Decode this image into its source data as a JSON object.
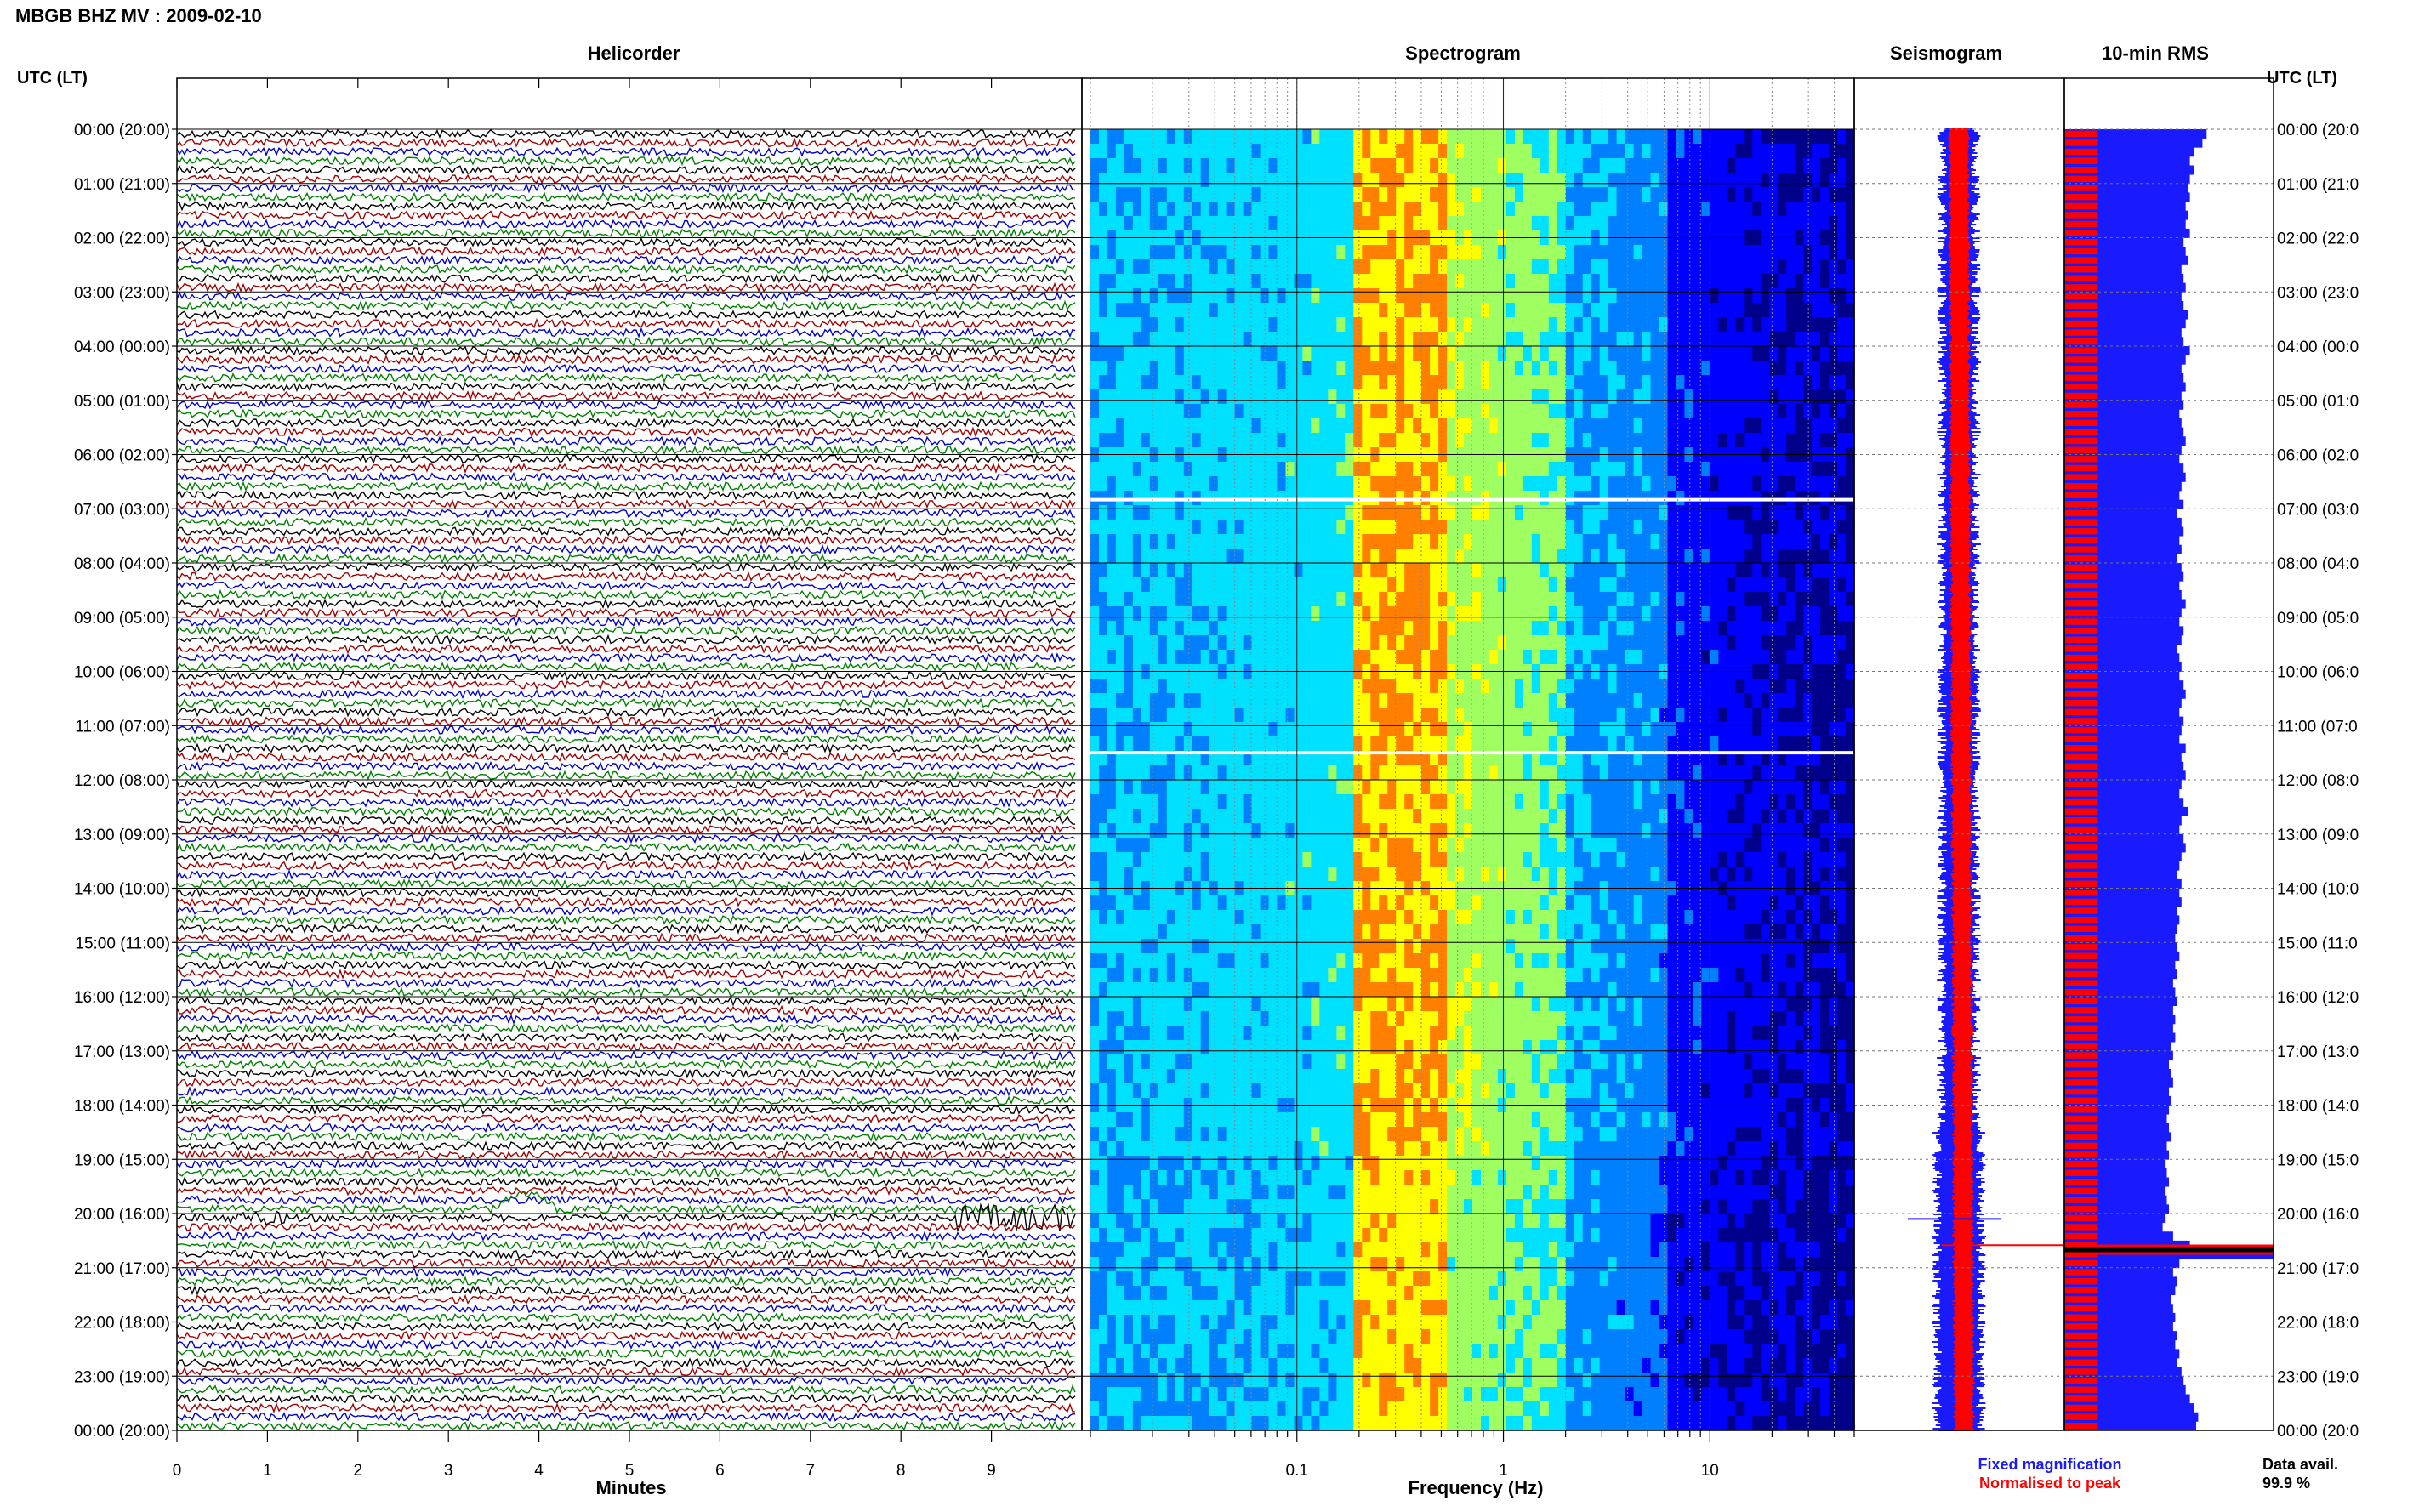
{
  "title": "MBGB BHZ MV : 2009-02-10",
  "time_axis_label": "UTC (LT)",
  "panels": {
    "helicorder": "Helicorder",
    "spectrogram": "Spectrogram",
    "seismogram": "Seismogram",
    "rms": "10-min RMS"
  },
  "time_labels": [
    "00:00 (20:00)",
    "01:00 (21:00)",
    "02:00 (22:00)",
    "03:00 (23:00)",
    "04:00 (00:00)",
    "05:00 (01:00)",
    "06:00 (02:00)",
    "07:00 (03:00)",
    "08:00 (04:00)",
    "09:00 (05:00)",
    "10:00 (06:00)",
    "11:00 (07:00)",
    "12:00 (08:00)",
    "13:00 (09:00)",
    "14:00 (10:00)",
    "15:00 (11:00)",
    "16:00 (12:00)",
    "17:00 (13:00)",
    "18:00 (14:00)",
    "19:00 (15:00)",
    "20:00 (16:00)",
    "21:00 (17:00)",
    "22:00 (18:00)",
    "23:00 (19:00)",
    "00:00 (20:00)"
  ],
  "right_time_labels": [
    "00:00 (20:0",
    "01:00 (21:0",
    "02:00 (22:0",
    "03:00 (23:0",
    "04:00 (00:0",
    "05:00 (01:0",
    "06:00 (02:0",
    "07:00 (03:0",
    "08:00 (04:0",
    "09:00 (05:0",
    "10:00 (06:0",
    "11:00 (07:0",
    "12:00 (08:0",
    "13:00 (09:0",
    "14:00 (10:0",
    "15:00 (11:0",
    "16:00 (12:0",
    "17:00 (13:0",
    "18:00 (14:0",
    "19:00 (15:0",
    "20:00 (16:0",
    "21:00 (17:0",
    "22:00 (18:0",
    "23:00 (19:0",
    "00:00 (20:0"
  ],
  "legend": {
    "fixed": "Fixed magnification",
    "normalised": "Normalised to peak",
    "fixed_color": "#1a1aff",
    "normalised_color": "#ff0000"
  },
  "data_avail_label": "Data avail.",
  "data_avail_value": "99.9 %",
  "chart_data": [
    {
      "type": "line",
      "panel": "Helicorder",
      "xlabel": "Minutes",
      "x_ticks": [
        "0",
        "1",
        "2",
        "3",
        "4",
        "5",
        "6",
        "7",
        "8",
        "9"
      ],
      "xlim": [
        0,
        10
      ],
      "trace_colors": [
        "#000000",
        "#a00000",
        "#0000c8",
        "#008000"
      ],
      "rows": 144,
      "events": [
        {
          "time": "20:00",
          "minute_start": 8.6,
          "minute_end": 10,
          "description": "large amplitude"
        },
        {
          "time": "20:00",
          "minute_start": 0.5,
          "minute_end": 1.3,
          "description": "moderate amplitude"
        },
        {
          "time": "19:50",
          "minute_start": 3.5,
          "minute_end": 4.2,
          "description": "long-period excursion"
        }
      ]
    },
    {
      "type": "heatmap",
      "panel": "Spectrogram",
      "xlabel": "Frequency (Hz)",
      "x_scale": "log",
      "xlim": [
        0.01,
        50
      ],
      "x_ticks": [
        "0.1",
        "1",
        "10"
      ],
      "colormap": [
        "#00008a",
        "#0000ff",
        "#0080ff",
        "#00e0ff",
        "#a0ff60",
        "#ffff00",
        "#ff8000"
      ],
      "peak_band_hz": [
        0.2,
        0.5
      ],
      "gaps_utc": [
        "06:50",
        "11:30"
      ]
    },
    {
      "type": "line",
      "panel": "Seismogram",
      "series": [
        {
          "name": "Fixed magnification",
          "color": "#1a1aff"
        },
        {
          "name": "Normalised to peak",
          "color": "#ff0000"
        }
      ],
      "peak_time_utc": "20:35"
    },
    {
      "type": "bar",
      "panel": "10-min RMS",
      "orientation": "horizontal",
      "series": [
        {
          "name": "Fixed magnification",
          "color": "#1a1aff"
        },
        {
          "name": "Normalised to peak",
          "color": "#ff0000"
        }
      ],
      "fixed_relative": [
        0.68,
        0.66,
        0.62,
        0.6,
        0.62,
        0.6,
        0.59,
        0.6,
        0.58,
        0.59,
        0.58,
        0.6,
        0.57,
        0.58,
        0.59,
        0.56,
        0.57,
        0.58,
        0.56,
        0.57,
        0.59,
        0.58,
        0.56,
        0.57,
        0.6,
        0.58,
        0.56,
        0.57,
        0.58,
        0.56,
        0.57,
        0.55,
        0.56,
        0.57,
        0.58,
        0.56,
        0.55,
        0.57,
        0.58,
        0.56,
        0.55,
        0.57,
        0.54,
        0.56,
        0.57,
        0.55,
        0.56,
        0.54,
        0.56,
        0.57,
        0.55,
        0.56,
        0.58,
        0.56,
        0.55,
        0.57,
        0.56,
        0.54,
        0.55,
        0.56,
        0.55,
        0.57,
        0.58,
        0.56,
        0.55,
        0.57,
        0.56,
        0.55,
        0.58,
        0.56,
        0.57,
        0.58,
        0.56,
        0.55,
        0.57,
        0.59,
        0.56,
        0.55,
        0.57,
        0.58,
        0.56,
        0.55,
        0.54,
        0.56,
        0.55,
        0.56,
        0.54,
        0.55,
        0.54,
        0.53,
        0.54,
        0.55,
        0.53,
        0.54,
        0.52,
        0.53,
        0.54,
        0.52,
        0.53,
        0.52,
        0.53,
        0.51,
        0.52,
        0.5,
        0.51,
        0.52,
        0.5,
        0.51,
        0.5,
        0.49,
        0.5,
        0.51,
        0.49,
        0.5,
        0.48,
        0.49,
        0.5,
        0.48,
        0.49,
        0.5,
        0.48,
        0.47,
        0.52,
        0.6,
        1.0,
        0.55,
        0.52,
        0.54,
        0.53,
        0.51,
        0.52,
        0.53,
        0.52,
        0.54,
        0.53,
        0.55,
        0.54,
        0.56,
        0.57,
        0.58,
        0.6,
        0.62,
        0.64,
        0.63
      ],
      "normalised_relative": 0.16,
      "peak_time_utc": "20:40"
    }
  ]
}
